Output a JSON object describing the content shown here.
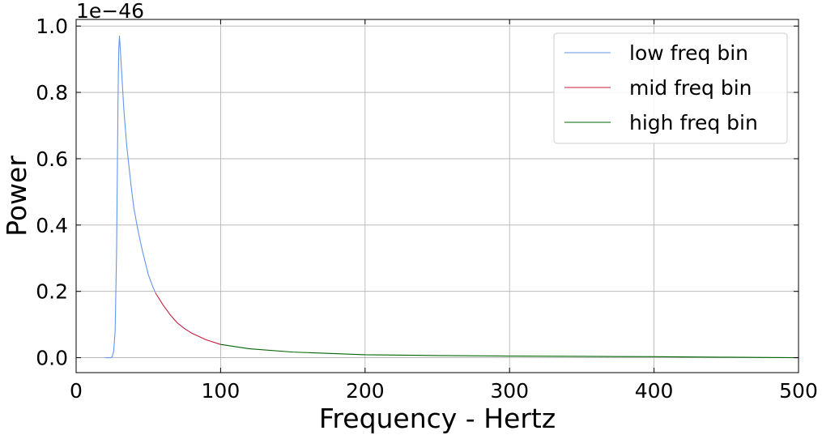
{
  "chart_data": {
    "type": "line",
    "title": "",
    "xlabel": "Frequency - Hertz",
    "ylabel": "Power",
    "y_offset_text": "1e−46",
    "xlim": [
      0,
      500
    ],
    "ylim": [
      -0.045,
      1.02
    ],
    "xticks": [
      0,
      100,
      200,
      300,
      400,
      500
    ],
    "yticks": [
      0.0,
      0.2,
      0.4,
      0.6,
      0.8,
      1.0
    ],
    "xtick_labels": [
      "0",
      "100",
      "200",
      "300",
      "400",
      "500"
    ],
    "ytick_labels": [
      "0.0",
      "0.2",
      "0.4",
      "0.6",
      "0.8",
      "1.0"
    ],
    "grid": true,
    "legend_position": "top-right",
    "series": [
      {
        "name": "low freq bin",
        "color": "#6495ed",
        "x": [
          20,
          24,
          25,
          26,
          27,
          28,
          29,
          29.5,
          30,
          31,
          33,
          35,
          38,
          40,
          43,
          46,
          50,
          53,
          55
        ],
        "y": [
          0.0,
          0.0,
          0.003,
          0.02,
          0.08,
          0.32,
          0.78,
          0.93,
          0.97,
          0.9,
          0.75,
          0.64,
          0.52,
          0.45,
          0.38,
          0.32,
          0.25,
          0.215,
          0.195
        ]
      },
      {
        "name": "mid freq bin",
        "color": "#c41e3a",
        "x": [
          55,
          60,
          65,
          70,
          75,
          80,
          90,
          100
        ],
        "y": [
          0.195,
          0.16,
          0.13,
          0.105,
          0.088,
          0.074,
          0.054,
          0.04
        ]
      },
      {
        "name": "high freq bin",
        "color": "#006400",
        "x": [
          100,
          120,
          150,
          200,
          250,
          300,
          350,
          400,
          450,
          500
        ],
        "y": [
          0.04,
          0.027,
          0.017,
          0.009,
          0.0065,
          0.005,
          0.004,
          0.003,
          0.0015,
          0.0
        ]
      }
    ]
  }
}
